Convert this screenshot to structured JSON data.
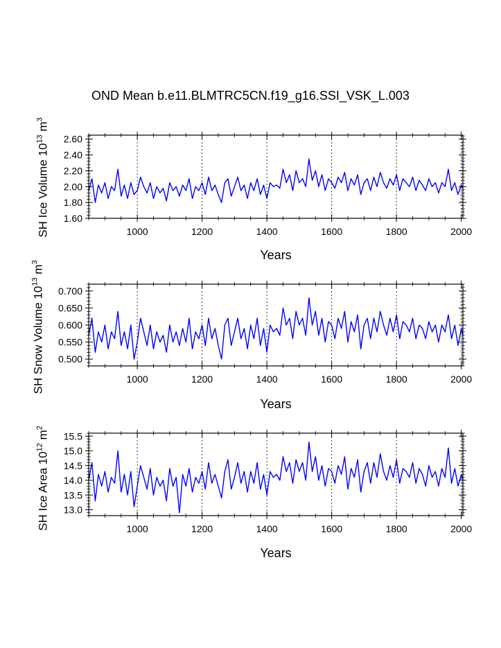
{
  "title": "OND Mean b.e11.BLMTRC5CN.f19_g16.SSI_VSK_L.003",
  "chart_data": [
    {
      "type": "line",
      "ylabel": {
        "prefix": "SH Ice Volume 10",
        "exponent": "13",
        "unit": "m",
        "unit_exp": "3"
      },
      "xlabel": "Years",
      "xlim": [
        850,
        2005
      ],
      "ylim": [
        1.6,
        2.65
      ],
      "xticks": [
        1000,
        1200,
        1400,
        1600,
        1800,
        2000
      ],
      "xtick_labels": [
        "1000",
        "1200",
        "1400",
        "1600",
        "1800",
        "2000"
      ],
      "yticks": [
        1.6,
        1.8,
        2.0,
        2.2,
        2.4,
        2.6
      ],
      "ytick_labels": [
        "1.60",
        "1.80",
        "2.00",
        "2.20",
        "2.40",
        "2.60"
      ],
      "grid": "vertical dashed at x ticks",
      "series": [
        {
          "color": "#0000ff",
          "x": [
            850,
            860,
            870,
            880,
            890,
            900,
            910,
            920,
            930,
            940,
            950,
            960,
            970,
            980,
            990,
            1000,
            1010,
            1020,
            1030,
            1040,
            1050,
            1060,
            1070,
            1080,
            1090,
            1100,
            1110,
            1120,
            1130,
            1140,
            1150,
            1160,
            1170,
            1180,
            1190,
            1200,
            1210,
            1220,
            1230,
            1240,
            1250,
            1260,
            1270,
            1280,
            1290,
            1300,
            1310,
            1320,
            1330,
            1340,
            1350,
            1360,
            1370,
            1380,
            1390,
            1400,
            1410,
            1420,
            1430,
            1440,
            1450,
            1460,
            1470,
            1480,
            1490,
            1500,
            1510,
            1520,
            1530,
            1540,
            1550,
            1560,
            1570,
            1580,
            1590,
            1600,
            1610,
            1620,
            1630,
            1640,
            1650,
            1660,
            1670,
            1680,
            1690,
            1700,
            1710,
            1720,
            1730,
            1740,
            1750,
            1760,
            1770,
            1780,
            1790,
            1800,
            1810,
            1820,
            1830,
            1840,
            1850,
            1860,
            1870,
            1880,
            1890,
            1900,
            1910,
            1920,
            1930,
            1940,
            1950,
            1960,
            1970,
            1980,
            1990,
            2000,
            2005
          ],
          "y": [
            1.95,
            2.1,
            1.8,
            2.02,
            1.92,
            2.05,
            1.85,
            2.0,
            1.95,
            2.22,
            1.88,
            2.02,
            1.85,
            2.05,
            1.9,
            1.95,
            2.12,
            2.0,
            1.92,
            2.05,
            1.85,
            2.0,
            1.92,
            1.98,
            1.82,
            2.05,
            1.95,
            2.0,
            1.88,
            2.02,
            1.95,
            2.1,
            1.85,
            2.0,
            1.95,
            2.05,
            1.9,
            2.12,
            1.95,
            2.02,
            1.9,
            1.8,
            2.05,
            2.1,
            1.88,
            2.0,
            2.12,
            1.95,
            2.02,
            1.85,
            2.05,
            1.95,
            2.1,
            1.9,
            2.02,
            1.85,
            2.05,
            2.0,
            2.02,
            1.98,
            2.22,
            2.05,
            2.15,
            1.95,
            2.2,
            2.05,
            2.1,
            2.0,
            2.35,
            2.08,
            2.2,
            2.0,
            2.15,
            1.95,
            2.1,
            2.05,
            1.98,
            2.12,
            2.05,
            2.18,
            1.95,
            2.1,
            2.02,
            2.15,
            1.9,
            2.05,
            2.1,
            1.95,
            2.12,
            2.0,
            2.18,
            2.05,
            1.98,
            2.1,
            2.02,
            2.15,
            1.95,
            2.1,
            2.05,
            2.0,
            2.12,
            1.95,
            2.08,
            2.02,
            1.95,
            2.1,
            2.0,
            2.05,
            1.92,
            2.05,
            2.0,
            2.22,
            1.95,
            2.05,
            1.9,
            2.02,
            1.98
          ]
        }
      ]
    },
    {
      "type": "line",
      "ylabel": {
        "prefix": "SH Snow Volume 10",
        "exponent": "13",
        "unit": "m",
        "unit_exp": "3"
      },
      "xlabel": "Years",
      "xlim": [
        850,
        2005
      ],
      "ylim": [
        0.48,
        0.72
      ],
      "xticks": [
        1000,
        1200,
        1400,
        1600,
        1800,
        2000
      ],
      "xtick_labels": [
        "1000",
        "1200",
        "1400",
        "1600",
        "1800",
        "2000"
      ],
      "yticks": [
        0.5,
        0.55,
        0.6,
        0.65,
        0.7
      ],
      "ytick_labels": [
        "0.500",
        "0.550",
        "0.600",
        "0.650",
        "0.700"
      ],
      "grid": "vertical dashed at x ticks",
      "series": [
        {
          "color": "#0000ff",
          "x": [
            850,
            860,
            870,
            880,
            890,
            900,
            910,
            920,
            930,
            940,
            950,
            960,
            970,
            980,
            990,
            1000,
            1010,
            1020,
            1030,
            1040,
            1050,
            1060,
            1070,
            1080,
            1090,
            1100,
            1110,
            1120,
            1130,
            1140,
            1150,
            1160,
            1170,
            1180,
            1190,
            1200,
            1210,
            1220,
            1230,
            1240,
            1250,
            1260,
            1270,
            1280,
            1290,
            1300,
            1310,
            1320,
            1330,
            1340,
            1350,
            1360,
            1370,
            1380,
            1390,
            1400,
            1410,
            1420,
            1430,
            1440,
            1450,
            1460,
            1470,
            1480,
            1490,
            1500,
            1510,
            1520,
            1530,
            1540,
            1550,
            1560,
            1570,
            1580,
            1590,
            1600,
            1610,
            1620,
            1630,
            1640,
            1650,
            1660,
            1670,
            1680,
            1690,
            1700,
            1710,
            1720,
            1730,
            1740,
            1750,
            1760,
            1770,
            1780,
            1790,
            1800,
            1810,
            1820,
            1830,
            1840,
            1850,
            1860,
            1870,
            1880,
            1890,
            1900,
            1910,
            1920,
            1930,
            1940,
            1950,
            1960,
            1970,
            1980,
            1990,
            2000,
            2005
          ],
          "y": [
            0.57,
            0.62,
            0.52,
            0.58,
            0.55,
            0.6,
            0.53,
            0.58,
            0.56,
            0.64,
            0.54,
            0.58,
            0.53,
            0.6,
            0.5,
            0.55,
            0.62,
            0.58,
            0.54,
            0.6,
            0.53,
            0.58,
            0.55,
            0.57,
            0.52,
            0.6,
            0.55,
            0.58,
            0.54,
            0.59,
            0.55,
            0.62,
            0.53,
            0.58,
            0.56,
            0.6,
            0.54,
            0.62,
            0.56,
            0.59,
            0.54,
            0.5,
            0.6,
            0.62,
            0.54,
            0.58,
            0.62,
            0.56,
            0.59,
            0.53,
            0.6,
            0.56,
            0.62,
            0.54,
            0.59,
            0.52,
            0.6,
            0.58,
            0.59,
            0.57,
            0.65,
            0.6,
            0.62,
            0.56,
            0.64,
            0.6,
            0.62,
            0.57,
            0.68,
            0.6,
            0.64,
            0.57,
            0.62,
            0.55,
            0.61,
            0.6,
            0.56,
            0.62,
            0.59,
            0.64,
            0.55,
            0.61,
            0.58,
            0.63,
            0.53,
            0.6,
            0.62,
            0.56,
            0.62,
            0.58,
            0.64,
            0.6,
            0.57,
            0.62,
            0.58,
            0.63,
            0.56,
            0.61,
            0.6,
            0.58,
            0.62,
            0.56,
            0.6,
            0.59,
            0.56,
            0.61,
            0.58,
            0.6,
            0.55,
            0.6,
            0.58,
            0.63,
            0.56,
            0.6,
            0.54,
            0.59,
            0.57
          ]
        }
      ]
    },
    {
      "type": "line",
      "ylabel": {
        "prefix": "SH Ice Area 10",
        "exponent": "12",
        "unit": "m",
        "unit_exp": "2"
      },
      "xlabel": "Years",
      "xlim": [
        850,
        2005
      ],
      "ylim": [
        12.8,
        15.6
      ],
      "xticks": [
        1000,
        1200,
        1400,
        1600,
        1800,
        2000
      ],
      "xtick_labels": [
        "1000",
        "1200",
        "1400",
        "1600",
        "1800",
        "2000"
      ],
      "yticks": [
        13.0,
        13.5,
        14.0,
        14.5,
        15.0,
        15.5
      ],
      "ytick_labels": [
        "13.0",
        "13.5",
        "14.0",
        "14.5",
        "15.0",
        "15.5"
      ],
      "grid": "vertical dashed at x ticks",
      "series": [
        {
          "color": "#0000ff",
          "x": [
            850,
            860,
            870,
            880,
            890,
            900,
            910,
            920,
            930,
            940,
            950,
            960,
            970,
            980,
            990,
            1000,
            1010,
            1020,
            1030,
            1040,
            1050,
            1060,
            1070,
            1080,
            1090,
            1100,
            1110,
            1120,
            1130,
            1140,
            1150,
            1160,
            1170,
            1180,
            1190,
            1200,
            1210,
            1220,
            1230,
            1240,
            1250,
            1260,
            1270,
            1280,
            1290,
            1300,
            1310,
            1320,
            1330,
            1340,
            1350,
            1360,
            1370,
            1380,
            1390,
            1400,
            1410,
            1420,
            1430,
            1440,
            1450,
            1460,
            1470,
            1480,
            1490,
            1500,
            1510,
            1520,
            1530,
            1540,
            1550,
            1560,
            1570,
            1580,
            1590,
            1600,
            1610,
            1620,
            1630,
            1640,
            1650,
            1660,
            1670,
            1680,
            1690,
            1700,
            1710,
            1720,
            1730,
            1740,
            1750,
            1760,
            1770,
            1780,
            1790,
            1800,
            1810,
            1820,
            1830,
            1840,
            1850,
            1860,
            1870,
            1880,
            1890,
            1900,
            1910,
            1920,
            1930,
            1940,
            1950,
            1960,
            1970,
            1980,
            1990,
            2000,
            2005
          ],
          "y": [
            14.0,
            14.6,
            13.3,
            14.2,
            13.8,
            14.3,
            13.6,
            14.1,
            13.9,
            15.0,
            13.6,
            14.2,
            13.5,
            14.3,
            13.1,
            13.8,
            14.5,
            14.1,
            13.7,
            14.4,
            13.5,
            14.1,
            13.8,
            14.0,
            13.3,
            14.4,
            13.8,
            14.1,
            12.9,
            14.2,
            13.8,
            14.4,
            13.6,
            14.1,
            13.9,
            14.3,
            13.7,
            14.6,
            13.9,
            14.2,
            13.8,
            13.4,
            14.3,
            14.7,
            13.7,
            14.1,
            14.6,
            13.9,
            14.3,
            13.6,
            14.3,
            13.9,
            14.6,
            13.7,
            14.2,
            13.5,
            14.3,
            14.1,
            14.2,
            14.0,
            14.8,
            14.3,
            14.6,
            13.9,
            14.7,
            14.3,
            14.6,
            14.0,
            15.3,
            14.3,
            14.8,
            14.0,
            14.5,
            13.8,
            14.4,
            14.3,
            13.9,
            14.5,
            14.2,
            14.8,
            13.7,
            14.4,
            14.1,
            14.7,
            13.6,
            14.3,
            14.6,
            13.9,
            14.6,
            14.1,
            14.9,
            14.3,
            14.0,
            14.5,
            14.1,
            14.7,
            13.9,
            14.4,
            14.3,
            14.1,
            14.6,
            13.9,
            14.4,
            14.2,
            13.8,
            14.5,
            14.1,
            14.3,
            13.8,
            14.4,
            14.1,
            15.1,
            13.9,
            14.4,
            13.8,
            14.2,
            14.0
          ]
        }
      ]
    }
  ]
}
